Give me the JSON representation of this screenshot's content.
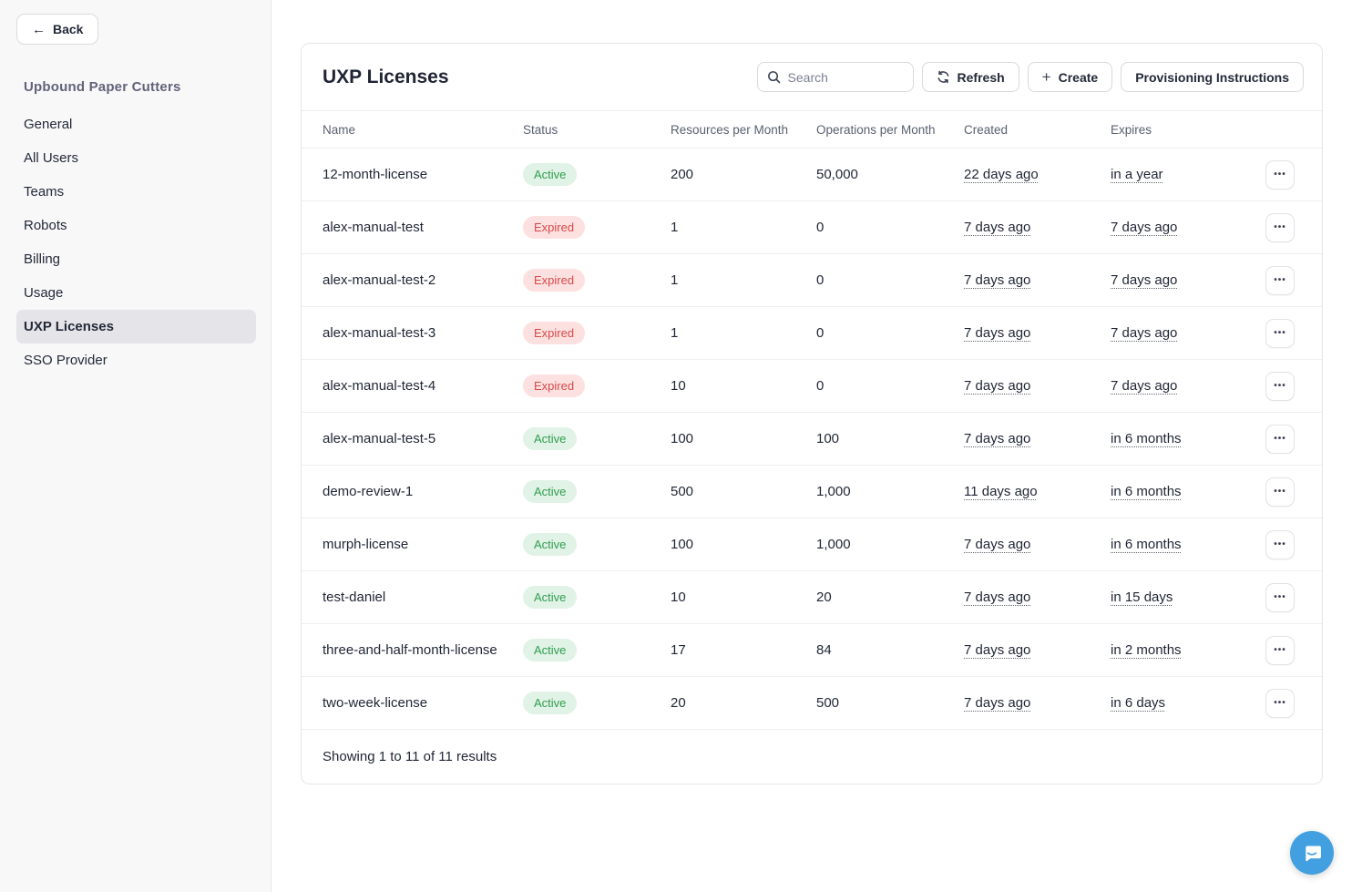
{
  "sidebar": {
    "back_label": "Back",
    "org_title": "Upbound Paper Cutters",
    "items": [
      {
        "label": "General",
        "active": false
      },
      {
        "label": "All Users",
        "active": false
      },
      {
        "label": "Teams",
        "active": false
      },
      {
        "label": "Robots",
        "active": false
      },
      {
        "label": "Billing",
        "active": false
      },
      {
        "label": "Usage",
        "active": false
      },
      {
        "label": "UXP Licenses",
        "active": true
      },
      {
        "label": "SSO Provider",
        "active": false
      }
    ]
  },
  "main": {
    "title": "UXP Licenses",
    "search": {
      "placeholder": "Search",
      "value": ""
    },
    "refresh_label": "Refresh",
    "create_label": "Create",
    "provisioning_label": "Provisioning Instructions",
    "table": {
      "columns": [
        "Name",
        "Status",
        "Resources per Month",
        "Operations per Month",
        "Created",
        "Expires"
      ],
      "rows": [
        {
          "name": "12-month-license",
          "status": "Active",
          "resources": "200",
          "operations": "50,000",
          "created": "22 days ago",
          "expires": "in a year"
        },
        {
          "name": "alex-manual-test",
          "status": "Expired",
          "resources": "1",
          "operations": "0",
          "created": "7 days ago",
          "expires": "7 days ago"
        },
        {
          "name": "alex-manual-test-2",
          "status": "Expired",
          "resources": "1",
          "operations": "0",
          "created": "7 days ago",
          "expires": "7 days ago"
        },
        {
          "name": "alex-manual-test-3",
          "status": "Expired",
          "resources": "1",
          "operations": "0",
          "created": "7 days ago",
          "expires": "7 days ago"
        },
        {
          "name": "alex-manual-test-4",
          "status": "Expired",
          "resources": "10",
          "operations": "0",
          "created": "7 days ago",
          "expires": "7 days ago"
        },
        {
          "name": "alex-manual-test-5",
          "status": "Active",
          "resources": "100",
          "operations": "100",
          "created": "7 days ago",
          "expires": "in 6 months"
        },
        {
          "name": "demo-review-1",
          "status": "Active",
          "resources": "500",
          "operations": "1,000",
          "created": "11 days ago",
          "expires": "in 6 months"
        },
        {
          "name": "murph-license",
          "status": "Active",
          "resources": "100",
          "operations": "1,000",
          "created": "7 days ago",
          "expires": "in 6 months"
        },
        {
          "name": "test-daniel",
          "status": "Active",
          "resources": "10",
          "operations": "20",
          "created": "7 days ago",
          "expires": "in 15 days"
        },
        {
          "name": "three-and-half-month-license",
          "status": "Active",
          "resources": "17",
          "operations": "84",
          "created": "7 days ago",
          "expires": "in 2 months"
        },
        {
          "name": "two-week-license",
          "status": "Active",
          "resources": "20",
          "operations": "500",
          "created": "7 days ago",
          "expires": "in 6 days"
        }
      ],
      "footer_text": "Showing 1 to 11 of 11 results"
    }
  },
  "icons": {
    "back_arrow": "←",
    "plus": "+",
    "ellipsis": "•••"
  },
  "colors": {
    "active_badge_bg": "#e1f2e6",
    "active_badge_text": "#2f9e4f",
    "expired_badge_bg": "#fce1e0",
    "expired_badge_text": "#d64a49",
    "chat_bubble": "#43a0e0",
    "sidebar_bg": "#f8f8f9",
    "org_title_text": "#62627a"
  }
}
